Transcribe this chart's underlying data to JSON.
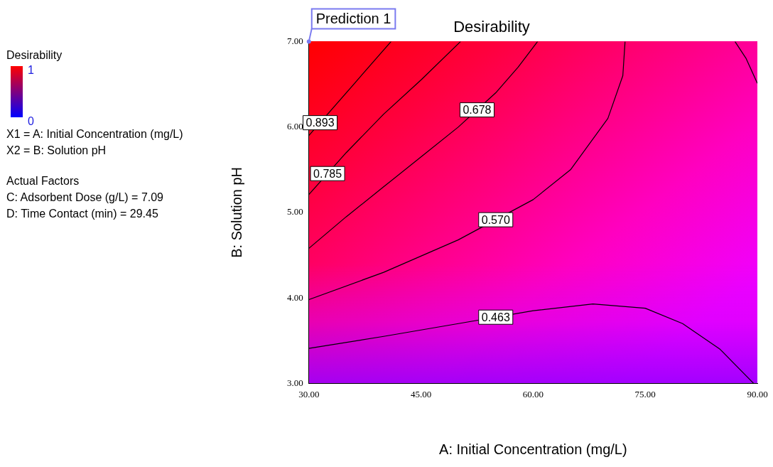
{
  "chart_data": {
    "type": "line",
    "title": "Desirability",
    "xlabel": "A: Initial Concentration (mg/L)",
    "ylabel": "B: Solution pH",
    "clabel": "Desirability",
    "clim": [
      0,
      1
    ],
    "cticks": [
      1,
      0
    ],
    "xlim": [
      30,
      90
    ],
    "xticks": [
      {
        "value": 30,
        "label": "30.00"
      },
      {
        "value": 45,
        "label": "45.00"
      },
      {
        "value": 60,
        "label": "60.00"
      },
      {
        "value": 75,
        "label": "75.00"
      },
      {
        "value": 90,
        "label": "90.00"
      }
    ],
    "ylim": [
      3,
      7
    ],
    "yticks": [
      {
        "value": 3,
        "label": "3.00"
      },
      {
        "value": 4,
        "label": "4.00"
      },
      {
        "value": 5,
        "label": "5.00"
      },
      {
        "value": 6,
        "label": "6.00"
      },
      {
        "value": 7,
        "label": "7.00"
      }
    ],
    "grid": false,
    "legend": false,
    "marker": "none",
    "line_style": "solid",
    "series": [
      {
        "name": "0.893",
        "color": "#000000",
        "x": [
          30,
          33,
          36,
          39,
          41
        ],
        "values": [
          5.9,
          6.2,
          6.5,
          6.8,
          7
        ]
      },
      {
        "name": "0.785",
        "color": "#000000",
        "x": [
          30,
          35,
          40,
          45,
          50.3
        ],
        "values": [
          5.21,
          5.7,
          6.15,
          6.55,
          7
        ]
      },
      {
        "name": "0.678",
        "color": "#000000",
        "x": [
          30,
          35,
          40,
          45,
          50,
          55,
          58,
          60.6
        ],
        "values": [
          4.58,
          4.95,
          5.3,
          5.65,
          6.0,
          6.4,
          6.7,
          7
        ]
      },
      {
        "name": "0.570",
        "color": "#000000",
        "x": [
          30,
          40,
          50,
          60,
          65,
          70,
          72,
          72.3
        ],
        "values": [
          3.98,
          4.3,
          4.68,
          5.15,
          5.5,
          6.1,
          6.6,
          7
        ]
      },
      {
        "name": "0.463",
        "color": "#000000",
        "x": [
          30,
          40,
          50,
          60,
          68,
          75,
          80,
          85,
          89.5
        ],
        "values": [
          3.41,
          3.55,
          3.7,
          3.85,
          3.93,
          3.88,
          3.7,
          3.4,
          3.0
        ]
      },
      {
        "color": "#000000",
        "x": [
          87,
          88.5,
          90
        ],
        "values": [
          7,
          6.8,
          6.51
        ]
      }
    ],
    "annotations": [
      {
        "text": "Prediction 1",
        "x": 30,
        "y": 7
      },
      "X1 = A: Initial Concentration (mg/L)",
      "X2 = B: Solution pH",
      "Actual Factors",
      "C: Adsorbent Dose (g/L) = 7.09",
      "D: Time Contact (min) = 29.45"
    ]
  }
}
